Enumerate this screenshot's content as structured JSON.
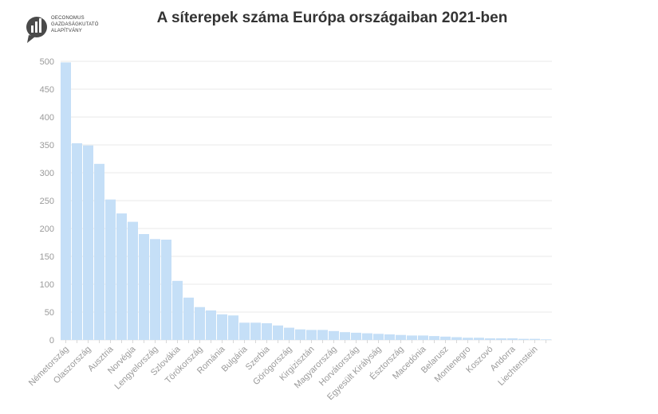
{
  "logo": {
    "icon": "chart-bubble-icon",
    "lines": [
      "OECONOMUS",
      "GAZDASÁGKUTATÓ",
      "ALAPÍTVÁNY"
    ]
  },
  "chart_data": {
    "type": "bar",
    "title": "A síterepek száma Európa országaiban 2021-ben",
    "xlabel": "",
    "ylabel": "",
    "ylim": [
      0,
      500
    ],
    "yticks": [
      0,
      50,
      100,
      150,
      200,
      250,
      300,
      350,
      400,
      450,
      500
    ],
    "grid": true,
    "bar_color": "#c5dff7",
    "categories": [
      "Németország",
      "",
      "Olaszország",
      "",
      "Ausztria",
      "",
      "Norvégia",
      "",
      "Lengyelország",
      "",
      "Szlovákia",
      "",
      "Törökország",
      "",
      "Románia",
      "",
      "Bulgária",
      "",
      "Szerbia",
      "",
      "Görögország",
      "",
      "Kirgizisztán",
      "",
      "Magyarország",
      "",
      "Horvátország",
      "",
      "Egyesült Királyság",
      "",
      "Észtország",
      "",
      "Macedónia",
      "",
      "Belarusz",
      "",
      "Montenegro",
      "",
      "Koszovó",
      "",
      "Andorra",
      "",
      "Liechtenstein",
      ""
    ],
    "values": [
      498,
      353,
      349,
      316,
      252,
      227,
      212,
      190,
      181,
      180,
      106,
      76,
      59,
      53,
      46,
      44,
      31,
      31,
      30,
      26,
      22,
      19,
      18,
      18,
      16,
      14,
      13,
      12,
      11,
      10,
      9,
      8,
      8,
      7,
      6,
      5,
      4,
      4,
      3,
      3,
      3,
      2,
      2,
      1
    ]
  }
}
